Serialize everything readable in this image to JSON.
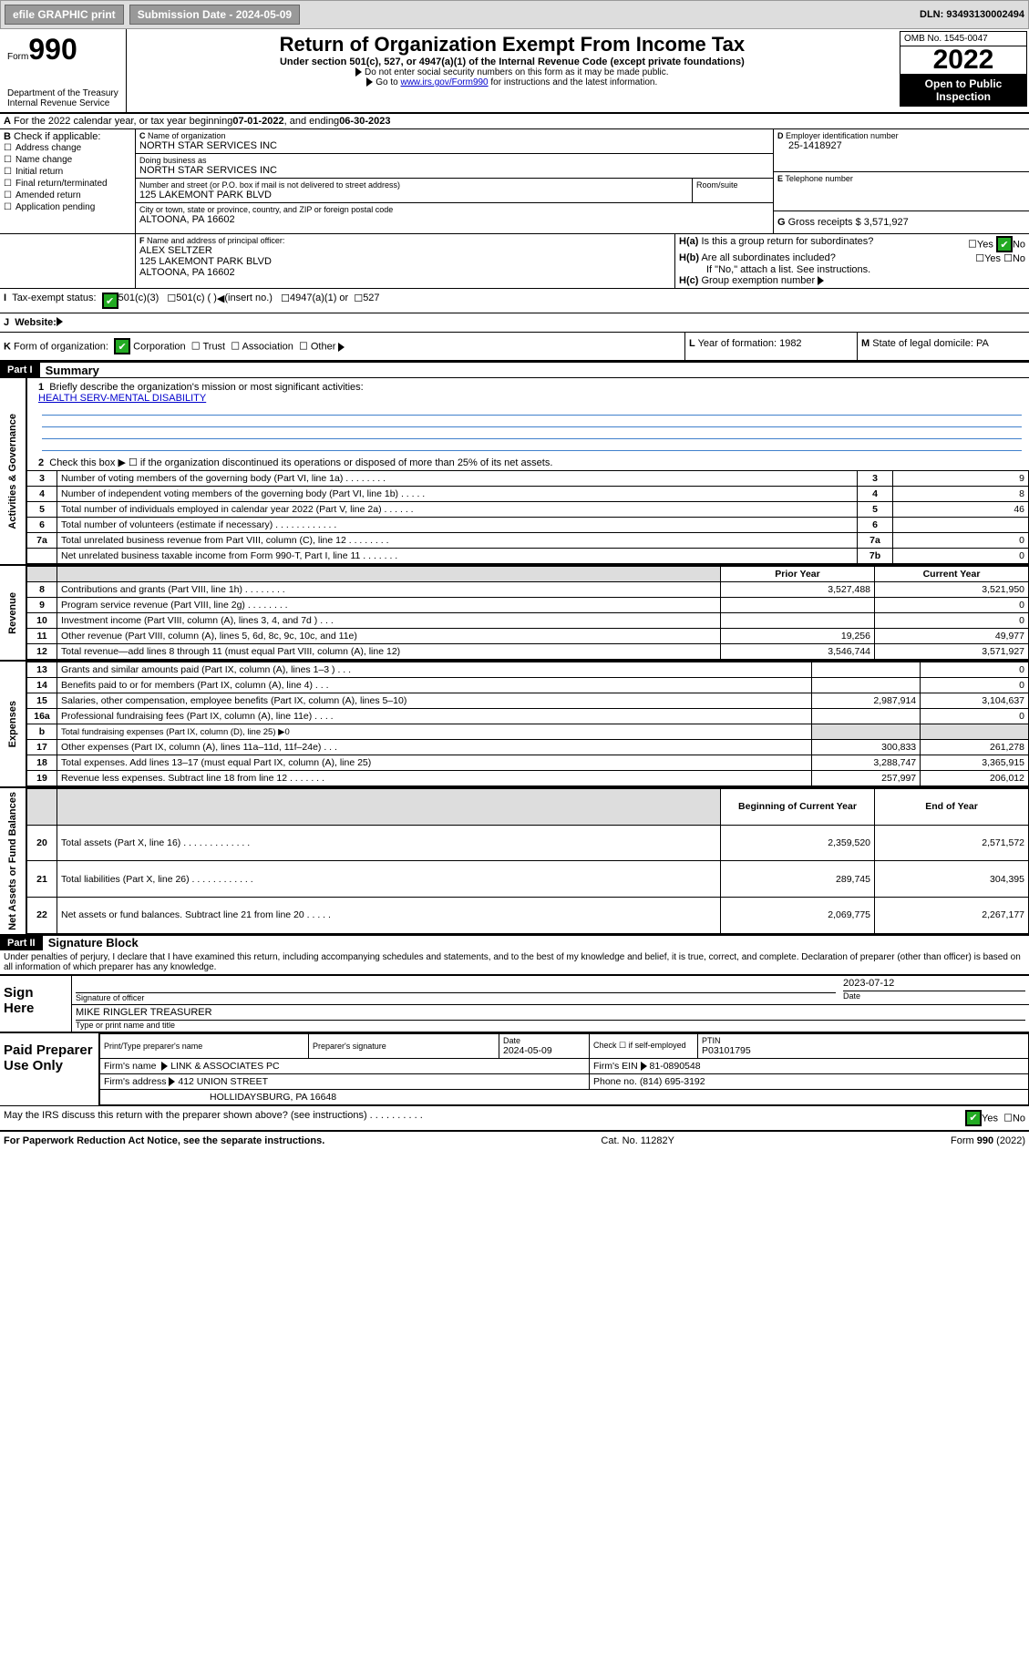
{
  "toolbar": {
    "efile": "efile GRAPHIC print",
    "submission_label": "Submission Date - 2024-05-09",
    "dln_label": "DLN:",
    "dln": "93493130002494"
  },
  "header": {
    "form_label": "Form",
    "form_number": "990",
    "title": "Return of Organization Exempt From Income Tax",
    "sub": "Under section 501(c), 527, or 4947(a)(1) of the Internal Revenue Code (except private foundations)",
    "line1": "Do not enter social security numbers on this form as it may be made public.",
    "line2_pre": "Go to ",
    "line2_link": "www.irs.gov/Form990",
    "line2_post": " for instructions and the latest information.",
    "dept": "Department of the Treasury",
    "irs": "Internal Revenue Service",
    "omb": "OMB No. 1545-0047",
    "year": "2022",
    "public": "Open to Public Inspection"
  },
  "a_line": {
    "prefix": "For the 2022 calendar year, or tax year beginning ",
    "begin": "07-01-2022",
    "mid": " , and ending ",
    "end": "06-30-2023"
  },
  "boxB": {
    "title": "Check if applicable:",
    "items": [
      "Address change",
      "Name change",
      "Initial return",
      "Final return/terminated",
      "Amended return",
      "Application pending"
    ]
  },
  "boxC": {
    "name_label": "Name of organization",
    "name": "NORTH STAR SERVICES INC",
    "dba_label": "Doing business as",
    "dba": "NORTH STAR SERVICES INC",
    "street_label": "Number and street (or P.O. box if mail is not delivered to street address)",
    "room_label": "Room/suite",
    "street": "125 LAKEMONT PARK BLVD",
    "city_label": "City or town, state or province, country, and ZIP or foreign postal code",
    "city": "ALTOONA, PA   16602"
  },
  "boxD": {
    "label": "Employer identification number",
    "value": "25-1418927"
  },
  "boxE": {
    "label": "Telephone number",
    "value": ""
  },
  "boxG": {
    "label": "Gross receipts $",
    "value": "3,571,927"
  },
  "boxF": {
    "label": "Name and address of principal officer:",
    "name": "ALEX SELTZER",
    "street": "125 LAKEMONT PARK BLVD",
    "city": "ALTOONA, PA   16602"
  },
  "boxH": {
    "a": "Is this a group return for subordinates?",
    "b": "Are all subordinates included?",
    "note": "If \"No,\" attach a list. See instructions.",
    "c": "Group exemption number"
  },
  "boxI": {
    "label": "Tax-exempt status:",
    "opt1": "501(c)(3)",
    "opt2": "501(c) (  )",
    "opt2_tail": "(insert no.)",
    "opt3": "4947(a)(1) or",
    "opt4": "527"
  },
  "boxJ": {
    "label": "Website:"
  },
  "boxK": {
    "label": "Form of organization:",
    "opts": [
      "Corporation",
      "Trust",
      "Association",
      "Other"
    ]
  },
  "boxL": {
    "label": "Year of formation:",
    "value": "1982"
  },
  "boxM": {
    "label": "State of legal domicile:",
    "value": "PA"
  },
  "parts": {
    "p1": {
      "label": "Part I",
      "title": "Summary"
    },
    "p2": {
      "label": "Part II",
      "title": "Signature Block"
    }
  },
  "summary": {
    "line1": "Briefly describe the organization's mission or most significant activities:",
    "mission": "HEALTH SERV-MENTAL DISABILITY",
    "line2": "Check this box ▶ ☐ if the organization discontinued its operations or disposed of more than 25% of its net assets.",
    "sideA": "Activities & Governance",
    "sideR": "Revenue",
    "sideE": "Expenses",
    "sideN": "Net Assets or Fund Balances",
    "prior_head": "Prior Year",
    "curr_head": "Current Year",
    "begin_head": "Beginning of Current Year",
    "end_head": "End of Year",
    "rows_gov": [
      {
        "n": "3",
        "t": "Number of voting members of the governing body (Part VI, line 1a) .   .   .   .   .   .   .   .",
        "r": "3",
        "v": "9"
      },
      {
        "n": "4",
        "t": "Number of independent voting members of the governing body (Part VI, line 1b) .   .   .   .   .",
        "r": "4",
        "v": "8"
      },
      {
        "n": "5",
        "t": "Total number of individuals employed in calendar year 2022 (Part V, line 2a)  .   .   .   .   .   .",
        "r": "5",
        "v": "46"
      },
      {
        "n": "6",
        "t": "Total number of volunteers (estimate if necessary)  .   .   .   .   .   .   .   .   .   .   .   .",
        "r": "6",
        "v": ""
      },
      {
        "n": "7a",
        "t": "Total unrelated business revenue from Part VIII, column (C), line 12 .   .   .   .   .   .   .   .",
        "r": "7a",
        "v": "0"
      },
      {
        "n": "",
        "t": "Net unrelated business taxable income from Form 990-T, Part I, line 11 .   .   .   .   .   .   .",
        "r": "7b",
        "v": "0"
      }
    ],
    "rows_rev": [
      {
        "n": "8",
        "t": "Contributions and grants (Part VIII, line 1h) .   .   .   .   .   .   .   .",
        "p": "3,527,488",
        "c": "3,521,950"
      },
      {
        "n": "9",
        "t": "Program service revenue (Part VIII, line 2g) .   .   .   .   .   .   .   .",
        "p": "",
        "c": "0"
      },
      {
        "n": "10",
        "t": "Investment income (Part VIII, column (A), lines 3, 4, and 7d ) .   .   .",
        "p": "",
        "c": "0"
      },
      {
        "n": "11",
        "t": "Other revenue (Part VIII, column (A), lines 5, 6d, 8c, 9c, 10c, and 11e)",
        "p": "19,256",
        "c": "49,977"
      },
      {
        "n": "12",
        "t": "Total revenue—add lines 8 through 11 (must equal Part VIII, column (A), line 12)",
        "p": "3,546,744",
        "c": "3,571,927"
      }
    ],
    "rows_exp": [
      {
        "n": "13",
        "t": "Grants and similar amounts paid (Part IX, column (A), lines 1–3 ) .   .   .",
        "p": "",
        "c": "0"
      },
      {
        "n": "14",
        "t": "Benefits paid to or for members (Part IX, column (A), line 4)  .   .   .",
        "p": "",
        "c": "0"
      },
      {
        "n": "15",
        "t": "Salaries, other compensation, employee benefits (Part IX, column (A), lines 5–10)",
        "p": "2,987,914",
        "c": "3,104,637"
      },
      {
        "n": "16a",
        "t": "Professional fundraising fees (Part IX, column (A), line 11e) .   .   .   .",
        "p": "",
        "c": "0"
      },
      {
        "n": "b",
        "t": "Total fundraising expenses (Part IX, column (D), line 25) ▶0",
        "greyed": true
      },
      {
        "n": "17",
        "t": "Other expenses (Part IX, column (A), lines 11a–11d, 11f–24e) .   .   .",
        "p": "300,833",
        "c": "261,278"
      },
      {
        "n": "18",
        "t": "Total expenses. Add lines 13–17 (must equal Part IX, column (A), line 25)",
        "p": "3,288,747",
        "c": "3,365,915"
      },
      {
        "n": "19",
        "t": "Revenue less expenses. Subtract line 18 from line 12 .   .   .   .   .   .   .",
        "p": "257,997",
        "c": "206,012"
      }
    ],
    "rows_net": [
      {
        "n": "20",
        "t": "Total assets (Part X, line 16) .   .   .   .   .   .   .   .   .   .   .   .   .",
        "p": "2,359,520",
        "c": "2,571,572"
      },
      {
        "n": "21",
        "t": "Total liabilities (Part X, line 26) .   .   .   .   .   .   .   .   .   .   .   .",
        "p": "289,745",
        "c": "304,395"
      },
      {
        "n": "22",
        "t": "Net assets or fund balances. Subtract line 21 from line 20 .   .   .   .   .",
        "p": "2,069,775",
        "c": "2,267,177"
      }
    ]
  },
  "sig": {
    "penalty": "Under penalties of perjury, I declare that I have examined this return, including accompanying schedules and statements, and to the best of my knowledge and belief, it is true, correct, and complete. Declaration of preparer (other than officer) is based on all information of which preparer has any knowledge.",
    "sign_here": "Sign Here",
    "sig_officer": "Signature of officer",
    "date_label": "Date",
    "date": "2023-07-12",
    "officer_name": "MIKE RINGLER  TREASURER",
    "type_name": "Type or print name and title",
    "paid": "Paid Preparer Use Only",
    "prep_name_lbl": "Print/Type preparer's name",
    "prep_sig_lbl": "Preparer's signature",
    "prep_date_lbl": "Date",
    "prep_date": "2024-05-09",
    "self_emp": "Check ☐ if self-employed",
    "ptin_lbl": "PTIN",
    "ptin": "P03101795",
    "firm_name_lbl": "Firm's name",
    "firm_name": "LINK & ASSOCIATES PC",
    "firm_ein_lbl": "Firm's EIN",
    "firm_ein": "81-0890548",
    "firm_addr_lbl": "Firm's address",
    "firm_addr1": "412 UNION STREET",
    "firm_addr2": "HOLLIDAYSBURG, PA  16648",
    "phone_lbl": "Phone no.",
    "phone": "(814) 695-3192",
    "discuss": "May the IRS discuss this return with the preparer shown above? (see instructions)  .   .   .   .   .   .   .   .   .   ."
  },
  "footer": {
    "left": "For Paperwork Reduction Act Notice, see the separate instructions.",
    "center": "Cat. No. 11282Y",
    "right": "Form 990 (2022)"
  },
  "yes": "Yes",
  "no": "No"
}
